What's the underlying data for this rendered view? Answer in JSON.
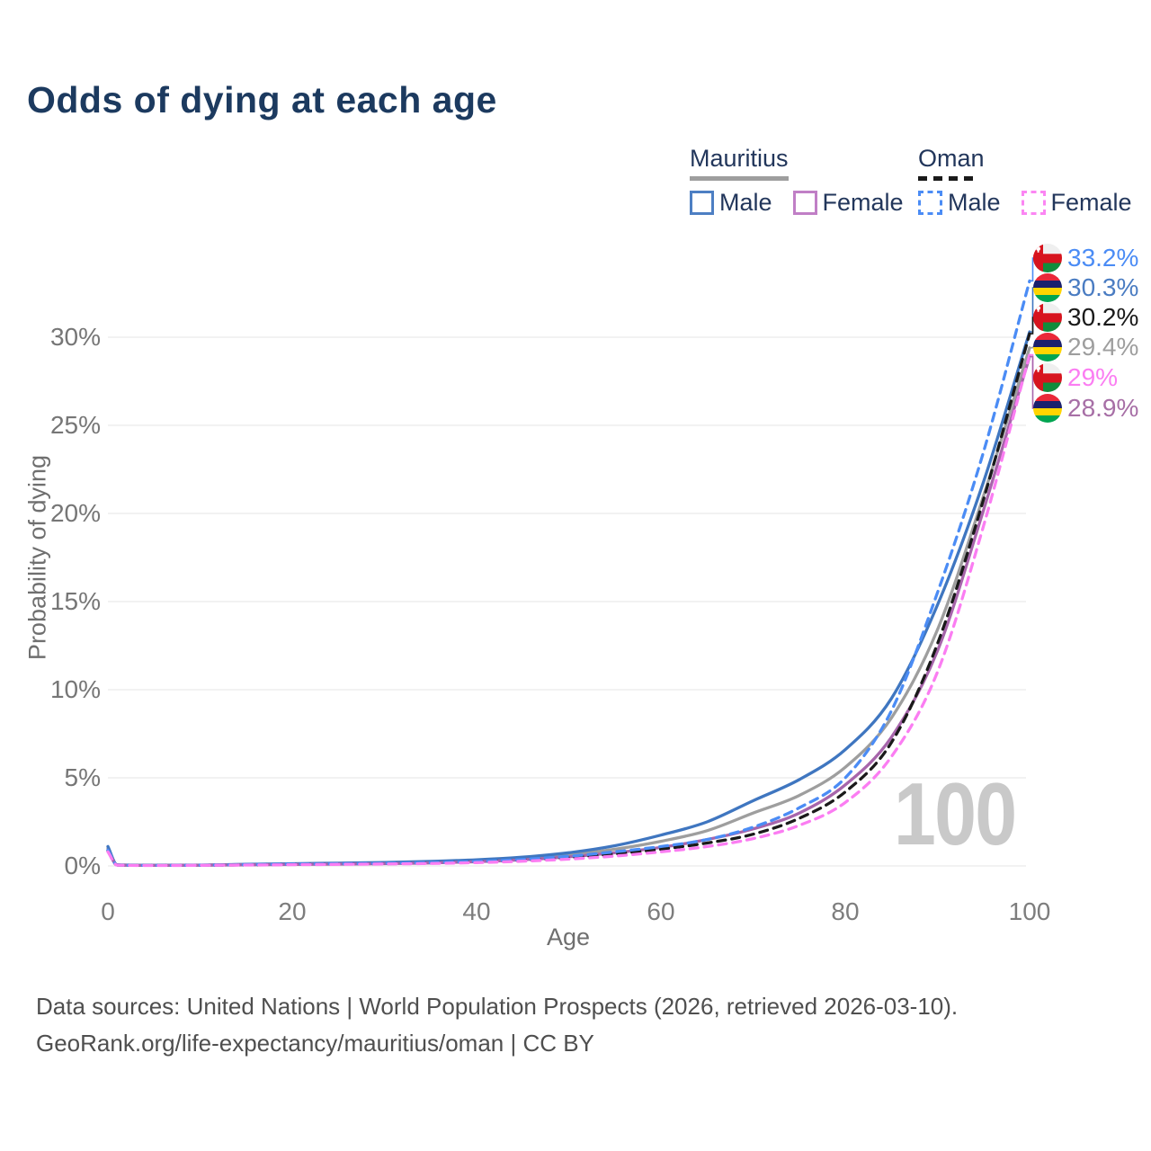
{
  "title": "Odds of dying at each age",
  "legend": {
    "groups": [
      {
        "name": "Mauritius",
        "line_style": "solid",
        "line_color": "#9e9e9e",
        "items": [
          {
            "label": "Male",
            "color": "#4d7fc3",
            "style": "solid"
          },
          {
            "label": "Female",
            "color": "#c07fc6",
            "style": "solid"
          }
        ]
      },
      {
        "name": "Oman",
        "line_style": "dashed",
        "line_color": "#1a1a1a",
        "items": [
          {
            "label": "Male",
            "color": "#4b8cf5",
            "style": "dashed"
          },
          {
            "label": "Female",
            "color": "#fb86f3",
            "style": "dashed"
          }
        ]
      }
    ]
  },
  "axes": {
    "y_label": "Probability of dying",
    "x_label": "Age",
    "y_ticks": [
      "0%",
      "5%",
      "10%",
      "15%",
      "20%",
      "25%",
      "30%"
    ],
    "x_ticks": [
      "0",
      "20",
      "40",
      "60",
      "80",
      "100"
    ]
  },
  "watermark": "100",
  "end_labels": [
    {
      "flag": "oman",
      "value": "33.2%",
      "end_value": 33.2,
      "text_color": "#4b8cf5",
      "line_color": "#4b8cf5"
    },
    {
      "flag": "mauritius",
      "value": "30.3%",
      "end_value": 30.3,
      "text_color": "#4a7cc2",
      "line_color": "#3f76c0"
    },
    {
      "flag": "oman",
      "value": "30.2%",
      "end_value": 30.2,
      "text_color": "#1a1a1a",
      "line_color": "#1a1a1a"
    },
    {
      "flag": "mauritius",
      "value": "29.4%",
      "end_value": 29.4,
      "text_color": "#9e9e9e",
      "line_color": "#9e9e9e"
    },
    {
      "flag": "oman",
      "value": "29%",
      "end_value": 29.0,
      "text_color": "#fb7df2",
      "line_color": "#fb7df2"
    },
    {
      "flag": "mauritius",
      "value": "28.9%",
      "end_value": 28.9,
      "text_color": "#a76fa6",
      "line_color": "#a765ab"
    }
  ],
  "footer": {
    "line1": "Data sources: United Nations | World Population Prospects (2026, retrieved 2026-03-10).",
    "line2": "GeoRank.org/life-expectancy/mauritius/oman | CC BY"
  },
  "chart_data": {
    "type": "line",
    "title": "Odds of dying at each age",
    "xlabel": "Age",
    "ylabel": "Probability of dying",
    "xlim": [
      0,
      100
    ],
    "ylim_percent": [
      0,
      33.5
    ],
    "x_ticks": [
      0,
      20,
      40,
      60,
      80,
      100
    ],
    "y_ticks_percent": [
      0,
      5,
      10,
      15,
      20,
      25,
      30
    ],
    "grid": true,
    "legend_position": "top-right",
    "unit": "%",
    "ages": [
      0,
      1,
      5,
      10,
      15,
      20,
      25,
      30,
      35,
      40,
      45,
      50,
      55,
      60,
      65,
      70,
      75,
      80,
      85,
      90,
      95,
      100
    ],
    "series": [
      {
        "name": "Mauritius",
        "country": "Mauritius",
        "color": "#9e9e9e",
        "dash": "solid",
        "values": [
          1.0,
          0.055,
          0.035,
          0.045,
          0.08,
          0.11,
          0.14,
          0.17,
          0.22,
          0.3,
          0.43,
          0.63,
          0.95,
          1.4,
          2.0,
          3.0,
          4.0,
          5.6,
          8.4,
          13.4,
          21.0,
          29.4
        ],
        "end_label": "29.4%"
      },
      {
        "name": "Mauritius Male",
        "country": "Mauritius",
        "sex": "Male",
        "color": "#3f76c0",
        "dash": "solid",
        "values": [
          1.1,
          0.06,
          0.04,
          0.05,
          0.09,
          0.13,
          0.16,
          0.2,
          0.26,
          0.35,
          0.5,
          0.75,
          1.15,
          1.75,
          2.5,
          3.7,
          4.9,
          6.6,
          9.5,
          14.8,
          21.8,
          30.3
        ],
        "end_label": "30.3%"
      },
      {
        "name": "Mauritius Female",
        "country": "Mauritius",
        "sex": "Female",
        "color": "#a765ab",
        "dash": "solid",
        "values": [
          0.9,
          0.05,
          0.03,
          0.04,
          0.06,
          0.08,
          0.1,
          0.13,
          0.17,
          0.24,
          0.35,
          0.52,
          0.75,
          1.05,
          1.5,
          2.1,
          3.0,
          4.6,
          7.3,
          12.2,
          20.2,
          28.9
        ],
        "end_label": "28.9%"
      },
      {
        "name": "Oman",
        "country": "Oman",
        "color": "#1a1a1a",
        "dash": "dashed",
        "values": [
          0.85,
          0.05,
          0.03,
          0.04,
          0.06,
          0.09,
          0.11,
          0.13,
          0.17,
          0.23,
          0.32,
          0.47,
          0.68,
          0.95,
          1.3,
          1.8,
          2.7,
          4.2,
          7.0,
          12.6,
          20.8,
          30.2
        ],
        "end_label": "30.2%"
      },
      {
        "name": "Oman Male",
        "country": "Oman",
        "sex": "Male",
        "color": "#4b8cf5",
        "dash": "dashed",
        "values": [
          0.9,
          0.05,
          0.03,
          0.04,
          0.07,
          0.1,
          0.12,
          0.15,
          0.19,
          0.26,
          0.37,
          0.55,
          0.8,
          1.1,
          1.5,
          2.2,
          3.3,
          5.0,
          8.8,
          15.5,
          23.5,
          33.2
        ],
        "end_label": "33.2%"
      },
      {
        "name": "Oman Female",
        "country": "Oman",
        "sex": "Female",
        "color": "#fb7df2",
        "dash": "dashed",
        "values": [
          0.8,
          0.045,
          0.025,
          0.035,
          0.05,
          0.07,
          0.09,
          0.11,
          0.14,
          0.19,
          0.27,
          0.39,
          0.56,
          0.8,
          1.1,
          1.55,
          2.3,
          3.6,
          6.2,
          11.0,
          19.3,
          29.0
        ],
        "end_label": "29%"
      }
    ]
  }
}
